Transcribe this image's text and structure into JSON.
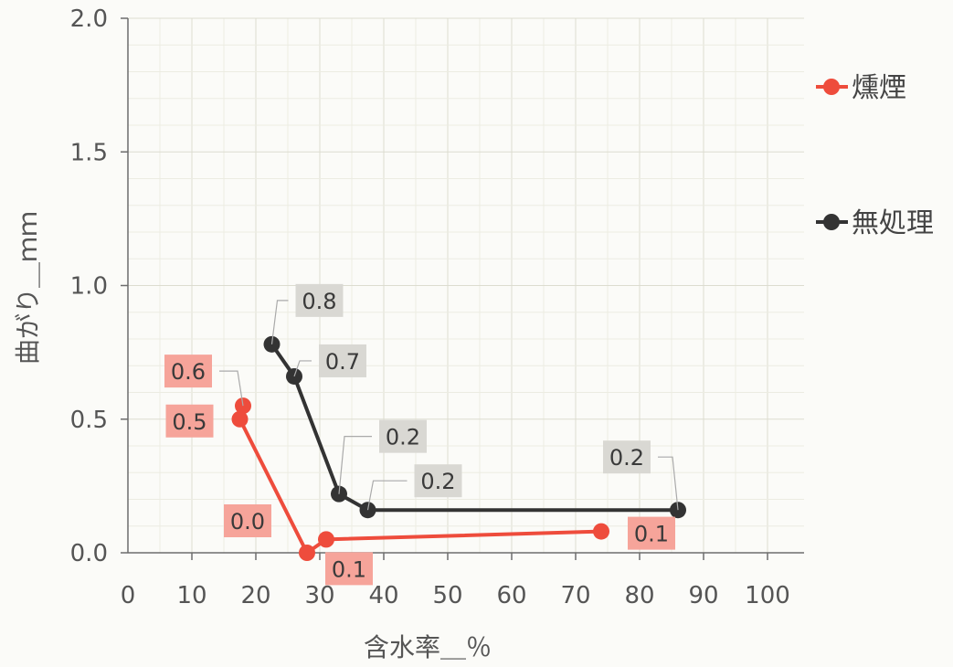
{
  "chart_data": {
    "type": "scatter",
    "xlabel": "含水率＿％",
    "ylabel": "曲がり＿ｍｍ",
    "xlim": [
      0,
      100
    ],
    "ylim": [
      0,
      2.0
    ],
    "x_ticks": [
      "0",
      "10",
      "20",
      "30",
      "40",
      "50",
      "60",
      "70",
      "80",
      "90",
      "100"
    ],
    "y_ticks": [
      "0.0",
      "0.5",
      "1.0",
      "1.5",
      "2.0"
    ],
    "grid": true,
    "legend_position": "right",
    "series": [
      {
        "name": "燻煙",
        "color": "#ee4c3c",
        "label_bg": "#f6a49a",
        "points": [
          {
            "x": 18.0,
            "y": 0.55,
            "label": "0.6"
          },
          {
            "x": 17.5,
            "y": 0.5,
            "label": "0.5"
          },
          {
            "x": 28.0,
            "y": 0.0,
            "label": "0.0"
          },
          {
            "x": 31.0,
            "y": 0.05,
            "label": "0.1"
          },
          {
            "x": 74.0,
            "y": 0.08,
            "label": "0.1"
          }
        ]
      },
      {
        "name": "無処理",
        "color": "#333333",
        "label_bg": "#d9d8d3",
        "points": [
          {
            "x": 22.5,
            "y": 0.78,
            "label": "0.8"
          },
          {
            "x": 26.0,
            "y": 0.66,
            "label": "0.7"
          },
          {
            "x": 33.0,
            "y": 0.22,
            "label": "0.2"
          },
          {
            "x": 37.5,
            "y": 0.16,
            "label": "0.2"
          },
          {
            "x": 86.0,
            "y": 0.16,
            "label": "0.2"
          }
        ]
      }
    ]
  }
}
